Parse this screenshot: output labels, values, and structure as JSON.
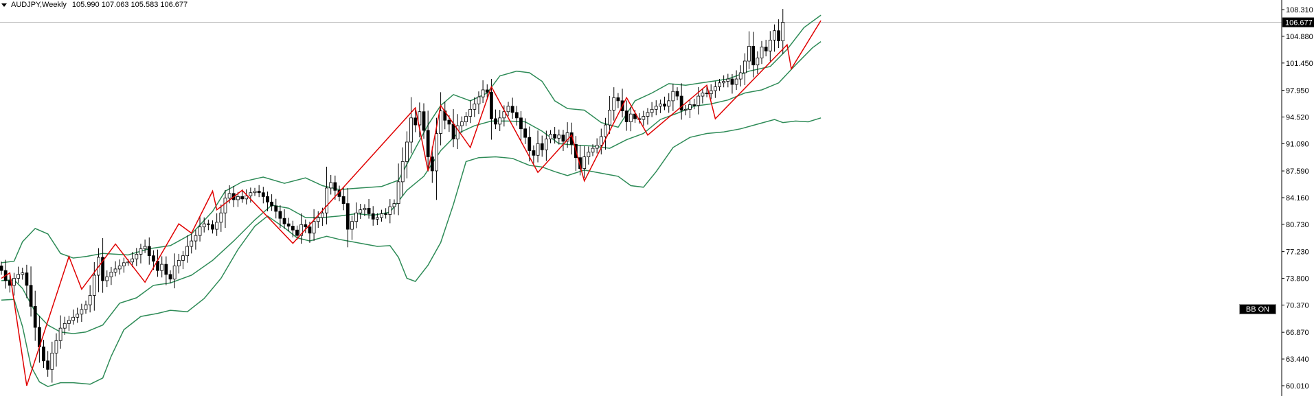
{
  "header": {
    "symbol": "AUDJPY,Weekly",
    "ohlc": "105.990 107.063 105.583 106.677"
  },
  "price_label": "106.677",
  "bb_button": "BB ON",
  "colors": {
    "bull": "#ffffff",
    "bear": "#000000",
    "wick": "#000000",
    "bands": "#2e8b57",
    "zigzag": "#e00000",
    "axis": "#000000",
    "price_line": "#c0c0c0"
  },
  "chart_data": {
    "type": "candlestick",
    "symbol": "AUDJPY",
    "timeframe": "Weekly",
    "ylim": [
      59.5,
      109.0
    ],
    "y_ticks": [
      "108.310",
      "104.880",
      "101.450",
      "97.950",
      "94.520",
      "91.090",
      "87.590",
      "84.160",
      "80.730",
      "77.230",
      "73.800",
      "70.370",
      "66.870",
      "63.440",
      "60.010"
    ],
    "last_price": 106.677,
    "candles_close": [
      74.8,
      73.5,
      72.9,
      73.8,
      74.3,
      74.5,
      72.9,
      70.2,
      67.5,
      65.0,
      63.2,
      62.1,
      64.2,
      65.8,
      67.4,
      68.0,
      68.4,
      68.8,
      69.2,
      69.8,
      70.4,
      71.6,
      74.2,
      76.5,
      73.5,
      74.0,
      74.6,
      75.0,
      75.4,
      75.8,
      75.9,
      76.3,
      76.9,
      77.6,
      77.9,
      76.7,
      76.0,
      74.8,
      75.6,
      74.3,
      73.7,
      75.4,
      76.1,
      76.7,
      77.9,
      78.6,
      79.3,
      80.4,
      80.8,
      80.7,
      80.1,
      81.0,
      82.2,
      84.1,
      84.7,
      83.9,
      84.3,
      84.0,
      84.4,
      84.8,
      85.0,
      84.8,
      84.3,
      83.6,
      83.1,
      82.4,
      81.5,
      80.8,
      80.5,
      80.0,
      79.3,
      80.7,
      80.4,
      79.6,
      81.1,
      81.6,
      82.2,
      85.4,
      86.1,
      85.1,
      84.3,
      83.4,
      80.1,
      81.1,
      82.2,
      82.6,
      82.8,
      82.1,
      81.4,
      81.6,
      82.1,
      82.0,
      83.0,
      83.4,
      86.2,
      88.8,
      91.3,
      94.4,
      93.5,
      95.2,
      92.8,
      89.4,
      87.6,
      92.4,
      95.3,
      94.1,
      93.6,
      91.7,
      93.4,
      93.9,
      94.6,
      95.5,
      96.2,
      97.1,
      98.0,
      97.7,
      94.3,
      93.6,
      94.4,
      95.2,
      95.9,
      95.1,
      94.4,
      93.0,
      91.9,
      90.2,
      89.6,
      91.1,
      90.3,
      91.7,
      92.3,
      91.8,
      92.2,
      91.4,
      92.5,
      91.0,
      89.3,
      87.9,
      89.4,
      90.0,
      90.5,
      90.9,
      92.0,
      93.5,
      95.4,
      97.0,
      96.6,
      95.3,
      93.9,
      94.9,
      94.3,
      94.2,
      94.6,
      95.1,
      95.5,
      95.9,
      96.2,
      95.9,
      96.6,
      97.8,
      97.2,
      95.4,
      95.5,
      96.1,
      96.0,
      97.2,
      97.6,
      97.5,
      97.9,
      98.4,
      98.9,
      99.1,
      99.4,
      98.7,
      99.4,
      100.2,
      101.7,
      103.6,
      101.2,
      102.1,
      103.5,
      103.0,
      104.4,
      105.6,
      104.3,
      106.677
    ],
    "bb_upper": [
      [
        0,
        75.8
      ],
      [
        3,
        76.0
      ],
      [
        5,
        78.5
      ],
      [
        8,
        80.2
      ],
      [
        11,
        79.5
      ],
      [
        14,
        77.0
      ],
      [
        17,
        76.4
      ],
      [
        20,
        76.6
      ],
      [
        24,
        77.0
      ],
      [
        30,
        76.8
      ],
      [
        35,
        77.6
      ],
      [
        40,
        78.0
      ],
      [
        45,
        79.5
      ],
      [
        50,
        82.4
      ],
      [
        53,
        85.0
      ],
      [
        57,
        86.2
      ],
      [
        62,
        86.8
      ],
      [
        67,
        86.0
      ],
      [
        72,
        86.7
      ],
      [
        76,
        85.7
      ],
      [
        80,
        85.2
      ],
      [
        85,
        85.4
      ],
      [
        90,
        85.6
      ],
      [
        94,
        86.4
      ],
      [
        98,
        90.5
      ],
      [
        101,
        93.5
      ],
      [
        104,
        96.0
      ],
      [
        107,
        97.4
      ],
      [
        111,
        96.6
      ],
      [
        115,
        97.6
      ],
      [
        118,
        99.8
      ],
      [
        122,
        100.4
      ],
      [
        125,
        100.2
      ],
      [
        128,
        99.1
      ],
      [
        131,
        96.6
      ],
      [
        134,
        95.6
      ],
      [
        138,
        95.4
      ],
      [
        142,
        93.8
      ],
      [
        146,
        93.2
      ],
      [
        150,
        96.6
      ],
      [
        154,
        97.6
      ],
      [
        158,
        98.8
      ],
      [
        162,
        98.6
      ],
      [
        167,
        99.0
      ],
      [
        172,
        99.4
      ],
      [
        177,
        100.4
      ],
      [
        182,
        101.0
      ],
      [
        186,
        103.2
      ],
      [
        190,
        106.0
      ],
      [
        194,
        107.6
      ]
    ],
    "bb_middle": [
      [
        0,
        73.5
      ],
      [
        3,
        73.6
      ],
      [
        5,
        72.5
      ],
      [
        8,
        69.5
      ],
      [
        11,
        67.8
      ],
      [
        14,
        66.9
      ],
      [
        17,
        66.7
      ],
      [
        20,
        66.9
      ],
      [
        24,
        67.8
      ],
      [
        28,
        70.6
      ],
      [
        32,
        71.3
      ],
      [
        36,
        72.9
      ],
      [
        40,
        73.2
      ],
      [
        45,
        74.2
      ],
      [
        50,
        76.1
      ],
      [
        55,
        78.6
      ],
      [
        60,
        81.3
      ],
      [
        64,
        83.2
      ],
      [
        68,
        82.8
      ],
      [
        72,
        81.6
      ],
      [
        76,
        81.6
      ],
      [
        80,
        81.8
      ],
      [
        84,
        82.1
      ],
      [
        88,
        81.9
      ],
      [
        92,
        82.3
      ],
      [
        96,
        85.1
      ],
      [
        100,
        86.9
      ],
      [
        104,
        90.2
      ],
      [
        108,
        92.4
      ],
      [
        112,
        93.4
      ],
      [
        116,
        94.0
      ],
      [
        120,
        94.0
      ],
      [
        124,
        93.9
      ],
      [
        128,
        92.7
      ],
      [
        132,
        91.1
      ],
      [
        136,
        90.9
      ],
      [
        140,
        90.8
      ],
      [
        144,
        90.5
      ],
      [
        148,
        91.6
      ],
      [
        152,
        92.4
      ],
      [
        156,
        94.2
      ],
      [
        160,
        95.0
      ],
      [
        164,
        95.9
      ],
      [
        168,
        96.2
      ],
      [
        172,
        96.7
      ],
      [
        176,
        97.6
      ],
      [
        180,
        98.0
      ],
      [
        184,
        98.9
      ],
      [
        188,
        101.2
      ],
      [
        192,
        103.4
      ],
      [
        194,
        104.2
      ]
    ],
    "bb_lower": [
      [
        0,
        71.0
      ],
      [
        3,
        71.1
      ],
      [
        5,
        67.6
      ],
      [
        7,
        62.5
      ],
      [
        9,
        60.5
      ],
      [
        11,
        59.9
      ],
      [
        14,
        60.4
      ],
      [
        17,
        60.4
      ],
      [
        21,
        60.2
      ],
      [
        24,
        61.0
      ],
      [
        26,
        63.8
      ],
      [
        29,
        67.2
      ],
      [
        33,
        68.9
      ],
      [
        37,
        69.3
      ],
      [
        40,
        69.7
      ],
      [
        44,
        69.5
      ],
      [
        48,
        71.2
      ],
      [
        52,
        73.8
      ],
      [
        56,
        77.5
      ],
      [
        60,
        80.5
      ],
      [
        63,
        81.8
      ],
      [
        67,
        80.3
      ],
      [
        70,
        79.0
      ],
      [
        73,
        78.6
      ],
      [
        77,
        79.2
      ],
      [
        80,
        78.8
      ],
      [
        85,
        78.3
      ],
      [
        89,
        77.9
      ],
      [
        92,
        78.0
      ],
      [
        94,
        76.5
      ],
      [
        96,
        73.8
      ],
      [
        98,
        73.4
      ],
      [
        101,
        75.5
      ],
      [
        104,
        78.4
      ],
      [
        107,
        83.3
      ],
      [
        110,
        88.8
      ],
      [
        113,
        89.3
      ],
      [
        117,
        89.4
      ],
      [
        121,
        89.2
      ],
      [
        125,
        88.3
      ],
      [
        128,
        88.1
      ],
      [
        131,
        87.5
      ],
      [
        134,
        87.0
      ],
      [
        138,
        87.7
      ],
      [
        142,
        87.3
      ],
      [
        146,
        86.9
      ],
      [
        149,
        85.7
      ],
      [
        152,
        85.5
      ],
      [
        155,
        87.5
      ],
      [
        159,
        90.6
      ],
      [
        163,
        91.9
      ],
      [
        167,
        92.4
      ],
      [
        171,
        92.6
      ],
      [
        175,
        93.0
      ],
      [
        179,
        93.6
      ],
      [
        183,
        94.2
      ],
      [
        185,
        93.8
      ],
      [
        188,
        94.0
      ],
      [
        191,
        93.9
      ],
      [
        194,
        94.4
      ]
    ],
    "zigzag": [
      [
        0,
        73.8
      ],
      [
        2,
        74.5
      ],
      [
        6,
        60.01
      ],
      [
        16,
        76.6
      ],
      [
        19,
        72.4
      ],
      [
        27,
        78.2
      ],
      [
        34,
        73.3
      ],
      [
        42,
        80.8
      ],
      [
        45,
        79.6
      ],
      [
        50,
        85.0
      ],
      [
        51,
        82.6
      ],
      [
        57,
        85.1
      ],
      [
        69,
        78.3
      ],
      [
        98,
        95.7
      ],
      [
        101,
        87.6
      ],
      [
        104,
        96.0
      ],
      [
        111,
        90.6
      ],
      [
        116,
        98.4
      ],
      [
        127,
        87.4
      ],
      [
        135,
        92.2
      ],
      [
        138,
        86.3
      ],
      [
        148,
        97.0
      ],
      [
        153,
        92.2
      ],
      [
        167,
        98.6
      ],
      [
        169,
        94.3
      ],
      [
        186,
        103.8
      ],
      [
        187,
        100.7
      ],
      [
        194,
        106.9
      ]
    ]
  }
}
